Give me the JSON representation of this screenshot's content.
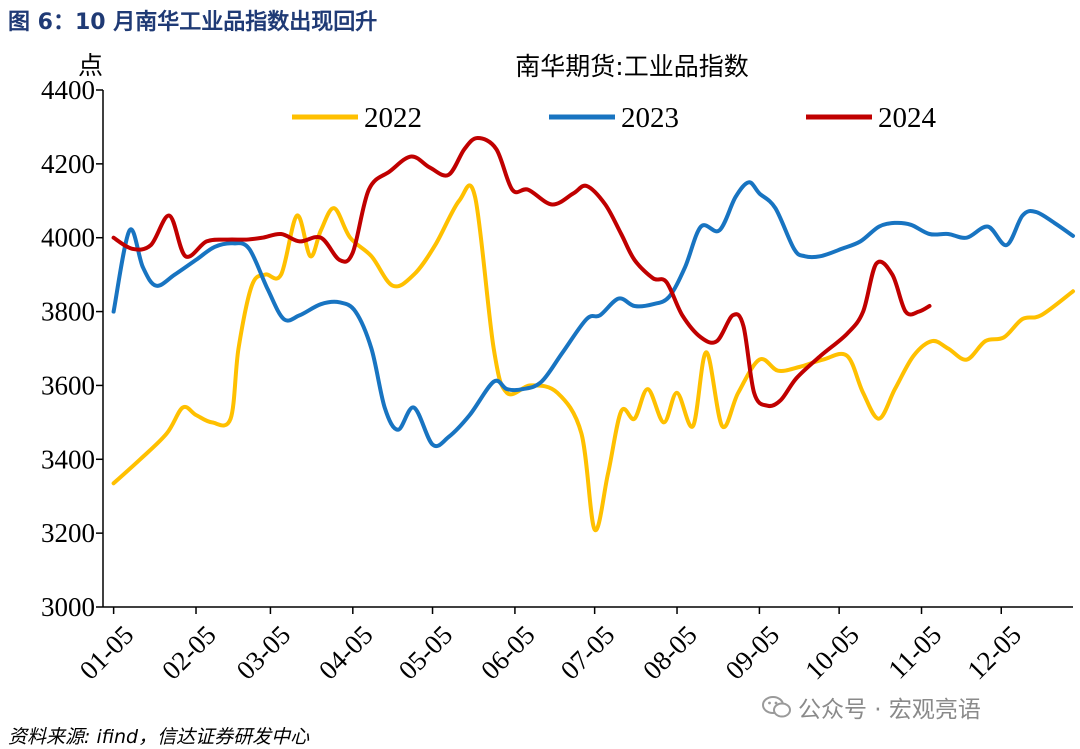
{
  "caption": "图 6：10 月南华工业品指数出现回升",
  "source": "资料来源: ifind，信达证券研发中心",
  "watermark": "公众号 · 宏观亮语",
  "watermark_icon": "wechat-icon",
  "chart_data": {
    "type": "line",
    "title": "南华期货:工业品指数",
    "ylabel": "点",
    "xlabel": "",
    "ylim": [
      3000,
      4400
    ],
    "yticks": [
      3000,
      3200,
      3400,
      3600,
      3800,
      4000,
      4200,
      4400
    ],
    "xlim": [
      1,
      366
    ],
    "x_ticks": [
      "01-05",
      "02-05",
      "03-05",
      "04-05",
      "05-05",
      "06-05",
      "07-05",
      "08-05",
      "09-05",
      "10-05",
      "11-05",
      "12-05"
    ],
    "x_tick_days": [
      5,
      36,
      64,
      95,
      125,
      156,
      186,
      217,
      248,
      278,
      309,
      339
    ],
    "legend_position": "top",
    "grid": false,
    "series": [
      {
        "name": "2022",
        "color": "#ffc000",
        "points": [
          [
            5,
            3335
          ],
          [
            15,
            3400
          ],
          [
            25,
            3470
          ],
          [
            31,
            3540
          ],
          [
            36,
            3520
          ],
          [
            42,
            3500
          ],
          [
            49,
            3510
          ],
          [
            52,
            3700
          ],
          [
            57,
            3870
          ],
          [
            62,
            3900
          ],
          [
            68,
            3900
          ],
          [
            74,
            4060
          ],
          [
            79,
            3950
          ],
          [
            83,
            4020
          ],
          [
            88,
            4080
          ],
          [
            94,
            4000
          ],
          [
            102,
            3950
          ],
          [
            110,
            3870
          ],
          [
            118,
            3900
          ],
          [
            126,
            3980
          ],
          [
            135,
            4100
          ],
          [
            141,
            4110
          ],
          [
            148,
            3700
          ],
          [
            153,
            3580
          ],
          [
            162,
            3600
          ],
          [
            172,
            3580
          ],
          [
            181,
            3470
          ],
          [
            186,
            3210
          ],
          [
            191,
            3360
          ],
          [
            196,
            3530
          ],
          [
            201,
            3510
          ],
          [
            206,
            3590
          ],
          [
            212,
            3500
          ],
          [
            217,
            3580
          ],
          [
            223,
            3490
          ],
          [
            228,
            3690
          ],
          [
            234,
            3490
          ],
          [
            240,
            3580
          ],
          [
            248,
            3670
          ],
          [
            255,
            3640
          ],
          [
            263,
            3650
          ],
          [
            272,
            3670
          ],
          [
            281,
            3680
          ],
          [
            287,
            3580
          ],
          [
            293,
            3510
          ],
          [
            299,
            3590
          ],
          [
            306,
            3680
          ],
          [
            313,
            3720
          ],
          [
            319,
            3700
          ],
          [
            326,
            3670
          ],
          [
            333,
            3720
          ],
          [
            340,
            3730
          ],
          [
            347,
            3780
          ],
          [
            354,
            3790
          ],
          [
            366,
            3855
          ]
        ]
      },
      {
        "name": "2023",
        "color": "#1874c1",
        "points": [
          [
            5,
            3800
          ],
          [
            11,
            4020
          ],
          [
            16,
            3920
          ],
          [
            21,
            3870
          ],
          [
            28,
            3900
          ],
          [
            36,
            3940
          ],
          [
            43,
            3975
          ],
          [
            50,
            3985
          ],
          [
            56,
            3970
          ],
          [
            63,
            3860
          ],
          [
            69,
            3780
          ],
          [
            75,
            3790
          ],
          [
            83,
            3820
          ],
          [
            90,
            3825
          ],
          [
            96,
            3800
          ],
          [
            102,
            3700
          ],
          [
            107,
            3540
          ],
          [
            112,
            3480
          ],
          [
            118,
            3540
          ],
          [
            125,
            3440
          ],
          [
            131,
            3460
          ],
          [
            139,
            3520
          ],
          [
            148,
            3610
          ],
          [
            153,
            3590
          ],
          [
            159,
            3590
          ],
          [
            166,
            3610
          ],
          [
            174,
            3690
          ],
          [
            183,
            3780
          ],
          [
            188,
            3790
          ],
          [
            195,
            3835
          ],
          [
            201,
            3815
          ],
          [
            208,
            3820
          ],
          [
            214,
            3840
          ],
          [
            220,
            3920
          ],
          [
            226,
            4030
          ],
          [
            233,
            4020
          ],
          [
            239,
            4110
          ],
          [
            244,
            4150
          ],
          [
            248,
            4120
          ],
          [
            254,
            4080
          ],
          [
            261,
            3970
          ],
          [
            265,
            3950
          ],
          [
            271,
            3950
          ],
          [
            279,
            3970
          ],
          [
            286,
            3990
          ],
          [
            293,
            4030
          ],
          [
            299,
            4040
          ],
          [
            305,
            4035
          ],
          [
            312,
            4010
          ],
          [
            319,
            4010
          ],
          [
            326,
            4000
          ],
          [
            334,
            4030
          ],
          [
            341,
            3980
          ],
          [
            347,
            4060
          ],
          [
            352,
            4070
          ],
          [
            359,
            4040
          ],
          [
            366,
            4005
          ]
        ]
      },
      {
        "name": "2024",
        "color": "#c00000",
        "points": [
          [
            5,
            4000
          ],
          [
            12,
            3970
          ],
          [
            19,
            3980
          ],
          [
            26,
            4060
          ],
          [
            32,
            3950
          ],
          [
            40,
            3990
          ],
          [
            48,
            3995
          ],
          [
            55,
            3995
          ],
          [
            61,
            4000
          ],
          [
            68,
            4010
          ],
          [
            75,
            3990
          ],
          [
            83,
            4000
          ],
          [
            90,
            3940
          ],
          [
            95,
            3960
          ],
          [
            101,
            4130
          ],
          [
            109,
            4180
          ],
          [
            117,
            4220
          ],
          [
            124,
            4190
          ],
          [
            131,
            4170
          ],
          [
            137,
            4240
          ],
          [
            142,
            4270
          ],
          [
            149,
            4240
          ],
          [
            155,
            4130
          ],
          [
            161,
            4130
          ],
          [
            170,
            4090
          ],
          [
            178,
            4120
          ],
          [
            183,
            4140
          ],
          [
            190,
            4090
          ],
          [
            196,
            4010
          ],
          [
            201,
            3940
          ],
          [
            208,
            3890
          ],
          [
            213,
            3880
          ],
          [
            219,
            3790
          ],
          [
            226,
            3730
          ],
          [
            232,
            3720
          ],
          [
            238,
            3790
          ],
          [
            242,
            3760
          ],
          [
            246,
            3580
          ],
          [
            251,
            3545
          ],
          [
            256,
            3560
          ],
          [
            262,
            3620
          ],
          [
            271,
            3680
          ],
          [
            281,
            3740
          ],
          [
            287,
            3800
          ],
          [
            292,
            3930
          ],
          [
            298,
            3900
          ],
          [
            303,
            3800
          ],
          [
            308,
            3800
          ],
          [
            312,
            3815
          ]
        ]
      }
    ]
  }
}
